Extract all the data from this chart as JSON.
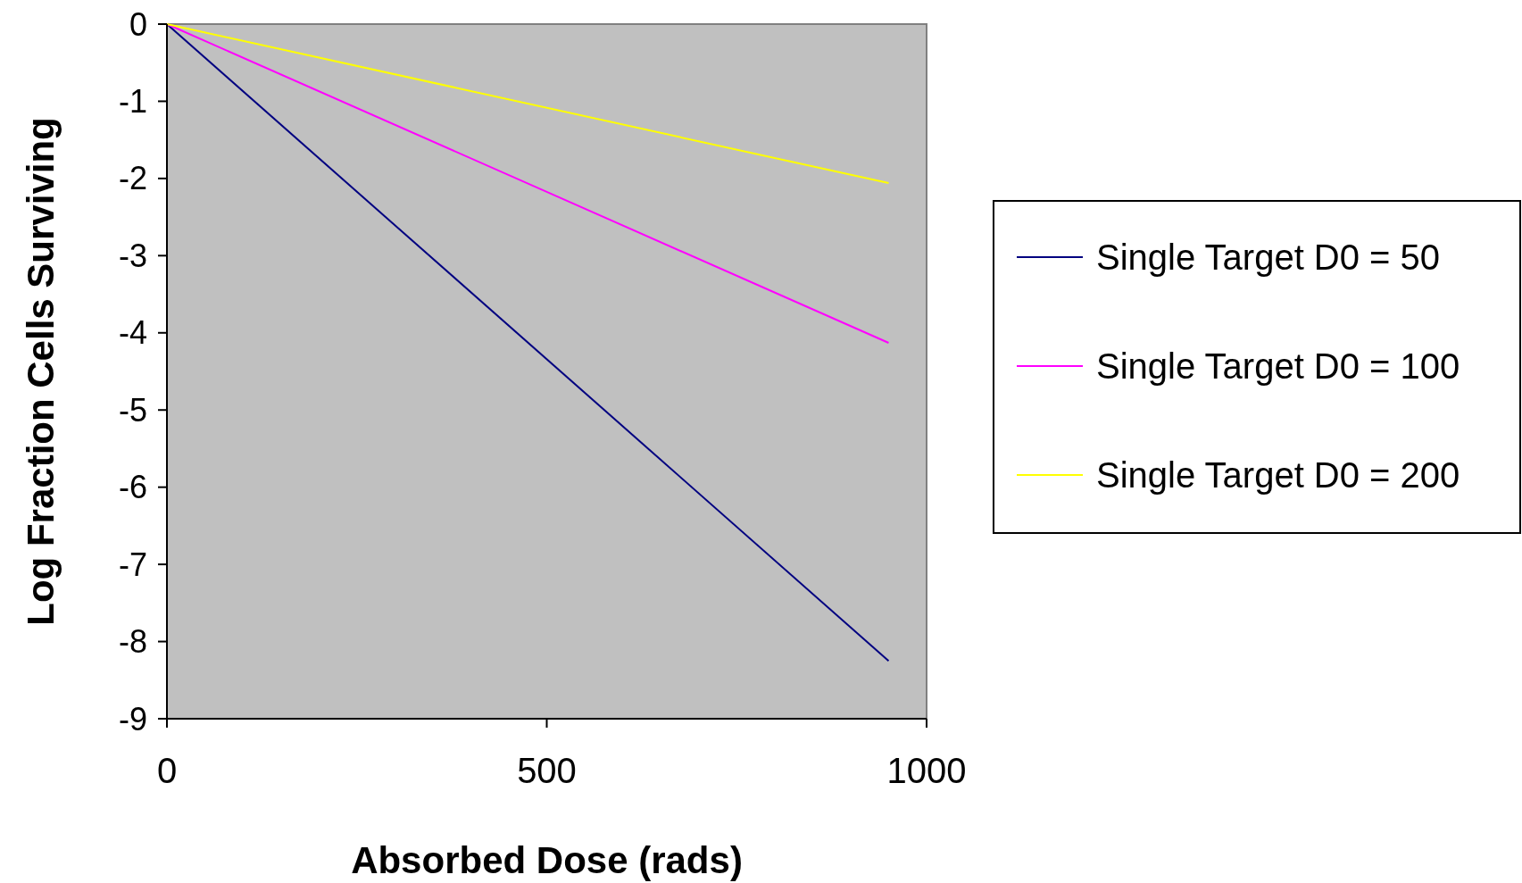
{
  "chart_data": {
    "type": "line",
    "xlabel": "Absorbed Dose (rads)",
    "ylabel": "Log Fraction Cells Surviving",
    "x": [
      0,
      950
    ],
    "series": [
      {
        "name": "Single Target D0 = 50",
        "color": "#000080",
        "values": [
          0,
          -8.25
        ]
      },
      {
        "name": "Single Target D0 = 100",
        "color": "#ff00ff",
        "values": [
          0,
          -4.13
        ]
      },
      {
        "name": "Single Target D0 = 200",
        "color": "#ffff00",
        "values": [
          0,
          -2.06
        ]
      }
    ],
    "xlim": [
      0,
      1000
    ],
    "xticks": [
      0,
      500,
      1000
    ],
    "ylim": [
      -9,
      0
    ],
    "yticks": [
      -9,
      -8,
      -7,
      -6,
      -5,
      -4,
      -3,
      -2,
      -1,
      0
    ],
    "legend": "right",
    "grid": false,
    "marker": "none",
    "line_style": "solid"
  }
}
